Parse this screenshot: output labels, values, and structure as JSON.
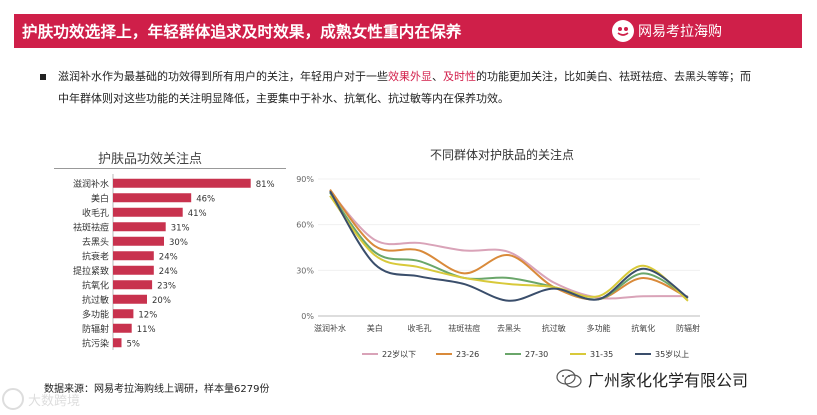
{
  "header": {
    "title": "护肤功效选择上，年轻群体追求及时效果，成熟女性重内在保养",
    "brand_name": "网易考拉海购",
    "bar_color": "#cf1f49"
  },
  "intro": {
    "part1": "滋润补水作为最基础的功效得到所有用户的关注，年轻用户对于一些",
    "highlight1": "效果外显",
    "sep": "、",
    "highlight2": "及时性",
    "part2": "的功能更加关注，比如美白、祛斑祛痘、去黑头等等；而中年群体则对这些功能的关注明显降低，主要集中于补水、抗氧化、抗过敏等内在保养功效。"
  },
  "footer": {
    "source": "数据来源：网易考拉海购线上调研，样本量6279份",
    "company": "广州家化化学有限公司",
    "watermark": "大数跨境"
  },
  "chart_data": [
    {
      "type": "bar",
      "orientation": "horizontal",
      "title": "护肤品功效关注点",
      "categories": [
        "滋润补水",
        "美白",
        "收毛孔",
        "祛斑祛痘",
        "去黑头",
        "抗衰老",
        "提拉紧致",
        "抗氧化",
        "抗过敏",
        "多功能",
        "防辐射",
        "抗污染"
      ],
      "values": [
        81,
        46,
        41,
        31,
        30,
        24,
        24,
        23,
        20,
        12,
        11,
        5
      ],
      "labels": [
        "81%",
        "46%",
        "41%",
        "31%",
        "30%",
        "24%",
        "24%",
        "23%",
        "20%",
        "12%",
        "11%",
        "5%"
      ],
      "color": "#c8324e",
      "xlim": [
        0,
        100
      ]
    },
    {
      "type": "line",
      "title": "不同群体对护肤品的关注点",
      "categories": [
        "滋润补水",
        "美白",
        "收毛孔",
        "祛斑祛痘",
        "去黑头",
        "抗过敏",
        "多功能",
        "抗氧化",
        "防辐射"
      ],
      "ylim": [
        0,
        90
      ],
      "yticks": [
        "0%",
        "30%",
        "60%",
        "90%"
      ],
      "yticks_values": [
        0,
        30,
        60,
        90
      ],
      "legend_position": "bottom",
      "series": [
        {
          "name": "22岁以下",
          "color": "#d9a3b8",
          "values": [
            82,
            50,
            48,
            43,
            42,
            22,
            12,
            13,
            13
          ]
        },
        {
          "name": "23-26",
          "color": "#d98a3a",
          "values": [
            83,
            46,
            43,
            28,
            40,
            19,
            11,
            25,
            12
          ]
        },
        {
          "name": "27-30",
          "color": "#6aa66a",
          "values": [
            81,
            42,
            36,
            25,
            25,
            19,
            11,
            28,
            12
          ]
        },
        {
          "name": "31-35",
          "color": "#d8c93a",
          "values": [
            79,
            40,
            32,
            25,
            21,
            19,
            13,
            33,
            10
          ]
        },
        {
          "name": "35岁以上",
          "color": "#3a4e6b",
          "values": [
            82,
            34,
            26,
            21,
            10,
            18,
            11,
            31,
            12
          ]
        }
      ]
    }
  ]
}
